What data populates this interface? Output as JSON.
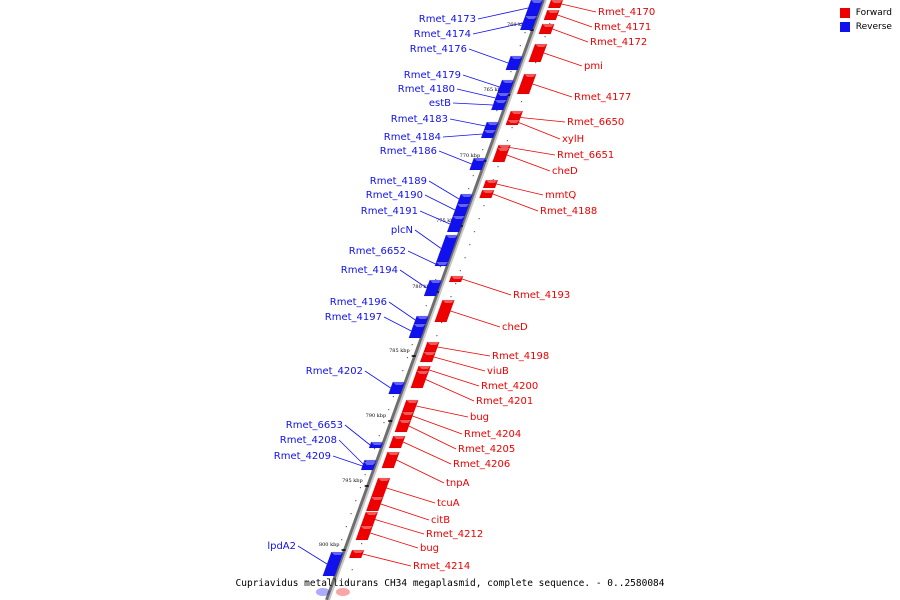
{
  "caption": "Cupriavidus metallidurans CH34 megaplasmid, complete sequence. - 0..2580084",
  "legend": [
    {
      "label": "Forward",
      "color": "#ee0000"
    },
    {
      "label": "Reverse",
      "color": "#1111ee"
    }
  ],
  "ticks": [
    "760 kbp",
    "765 kbp",
    "770 kbp",
    "775 kbp",
    "780 kbp",
    "785 kbp",
    "790 kbp",
    "795 kbp",
    "800 kbp"
  ],
  "reverse_genes": [
    "Rmet_4173",
    "Rmet_4174",
    "Rmet_4176",
    "Rmet_4179",
    "Rmet_4180",
    "estB",
    "Rmet_4183",
    "Rmet_4184",
    "Rmet_4186",
    "Rmet_4189",
    "Rmet_4190",
    "Rmet_4191",
    "plcN",
    "Rmet_6652",
    "Rmet_4194",
    "Rmet_4196",
    "Rmet_4197",
    "Rmet_4202",
    "Rmet_6653",
    "Rmet_4208",
    "Rmet_4209",
    "lpdA2"
  ],
  "forward_genes": [
    "Rmet_4170",
    "Rmet_4171",
    "Rmet_4172",
    "pmi",
    "Rmet_4177",
    "Rmet_6650",
    "xylH",
    "Rmet_6651",
    "cheD",
    "mmtQ",
    "Rmet_4188",
    "Rmet_4193",
    "cheD",
    "Rmet_4198",
    "viuB",
    "Rmet_4200",
    "Rmet_4201",
    "bug",
    "Rmet_4204",
    "Rmet_4205",
    "Rmet_4206",
    "tnpA",
    "tcuA",
    "citB",
    "Rmet_4212",
    "bug",
    "Rmet_4214"
  ],
  "colors": {
    "forward": "#ee0000",
    "reverse": "#1111ee",
    "axis": "#9a9a9a"
  }
}
